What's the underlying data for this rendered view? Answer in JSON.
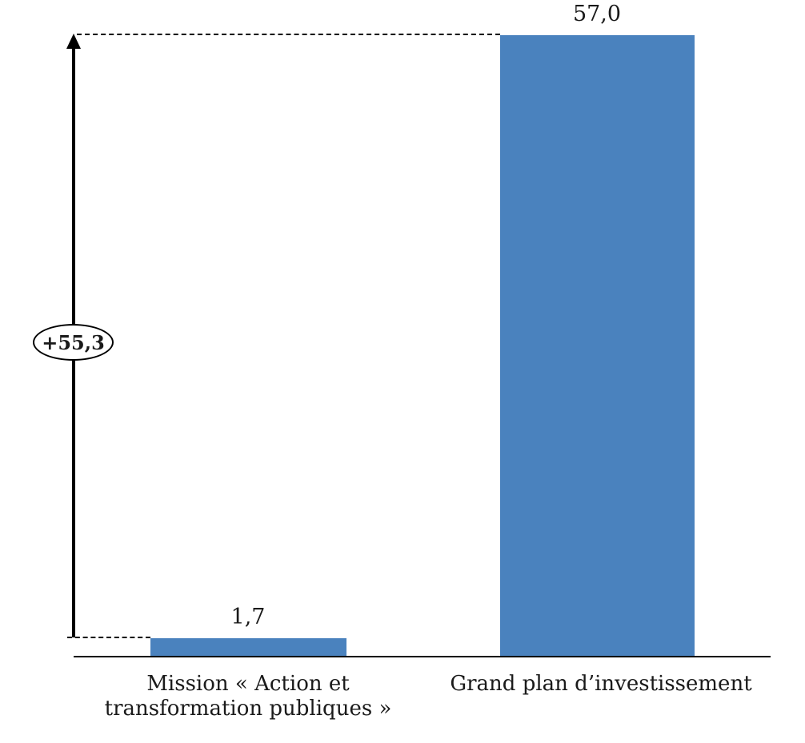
{
  "chart_data": {
    "type": "bar",
    "title": "",
    "xlabel": "",
    "ylabel": "",
    "categories": [
      "Mission « Action et transformation publiques »",
      "Grand plan d’investissement"
    ],
    "category_labels_display": [
      "Mission « Action et\ntransformation publiques »",
      "Grand plan d’investissement"
    ],
    "values": [
      1.7,
      57.0
    ],
    "value_labels": [
      "1,7",
      "57,0"
    ],
    "ylim": [
      0,
      57
    ],
    "grid": false,
    "legend": false,
    "bar_color": "#4A82BE",
    "annotations": {
      "difference_label": "+55,3",
      "guide_line_style": "dashed",
      "arrow_direction": "up"
    }
  }
}
